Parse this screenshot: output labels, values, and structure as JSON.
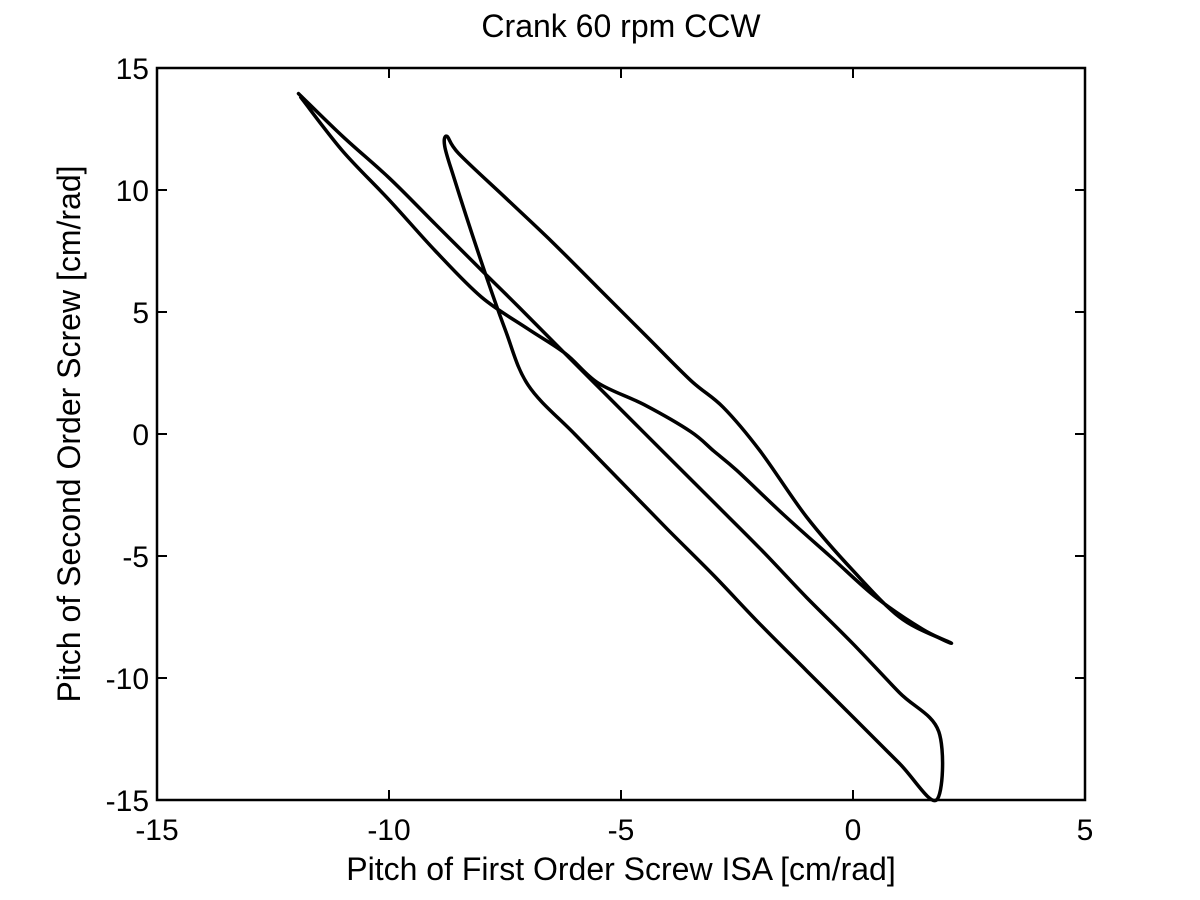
{
  "chart_data": {
    "type": "line",
    "title": "Crank 60 rpm CCW",
    "xlabel": "Pitch of First Order Screw ISA [cm/rad]",
    "ylabel": "Pitch of Second Order Screw [cm/rad]",
    "xlim": [
      -15,
      5
    ],
    "ylim": [
      -15,
      15
    ],
    "xticks": [
      -15,
      -10,
      -5,
      0,
      5
    ],
    "yticks": [
      -15,
      -10,
      -5,
      0,
      5,
      10,
      15
    ],
    "xtick_labels": [
      "-15",
      "-10",
      "-5",
      "0",
      "5"
    ],
    "ytick_labels": [
      "-15",
      "-10",
      "-5",
      "0",
      "5",
      "10",
      "15"
    ],
    "grid": false,
    "series": [
      {
        "color": "#000000",
        "x": [
          -11.95,
          -11.0,
          -10.0,
          -9.0,
          -8.0,
          -7.2,
          -6.0,
          -5.0,
          -4.0,
          -3.0,
          -2.0,
          -1.0,
          0.0,
          1.0,
          1.85,
          1.8,
          1.0,
          0.0,
          -1.0,
          -2.0,
          -3.0,
          -4.0,
          -5.0,
          -6.0,
          -7.0,
          -7.5,
          -8.0,
          -8.6,
          -8.8,
          -8.75,
          -8.5,
          -7.5,
          -6.5,
          -5.5,
          -4.5,
          -3.5,
          -2.8,
          -2.0,
          -1.0,
          0.0,
          1.0,
          1.9,
          2.1,
          1.5,
          0.5,
          -0.5,
          -1.5,
          -2.5,
          -3.0,
          -3.5,
          -4.5,
          -5.5,
          -6.2,
          -7.0,
          -8.0,
          -9.0,
          -10.0,
          -11.0,
          -11.9
        ],
        "y": [
          13.95,
          12.2,
          10.5,
          8.6,
          6.7,
          5.2,
          2.9,
          1.0,
          -0.9,
          -2.8,
          -4.7,
          -6.7,
          -8.6,
          -10.6,
          -12.2,
          -15.0,
          -13.5,
          -11.6,
          -9.7,
          -7.8,
          -5.8,
          -3.9,
          -1.95,
          0.0,
          2.0,
          4.3,
          7.0,
          10.5,
          11.8,
          12.2,
          11.5,
          9.7,
          7.9,
          6.0,
          4.1,
          2.2,
          1.1,
          -0.7,
          -3.4,
          -5.6,
          -7.5,
          -8.4,
          -8.55,
          -8.0,
          -6.7,
          -5.0,
          -3.3,
          -1.5,
          -0.7,
          0.1,
          1.2,
          2.1,
          3.3,
          4.3,
          5.6,
          7.5,
          9.6,
          11.6,
          13.8
        ]
      }
    ]
  }
}
